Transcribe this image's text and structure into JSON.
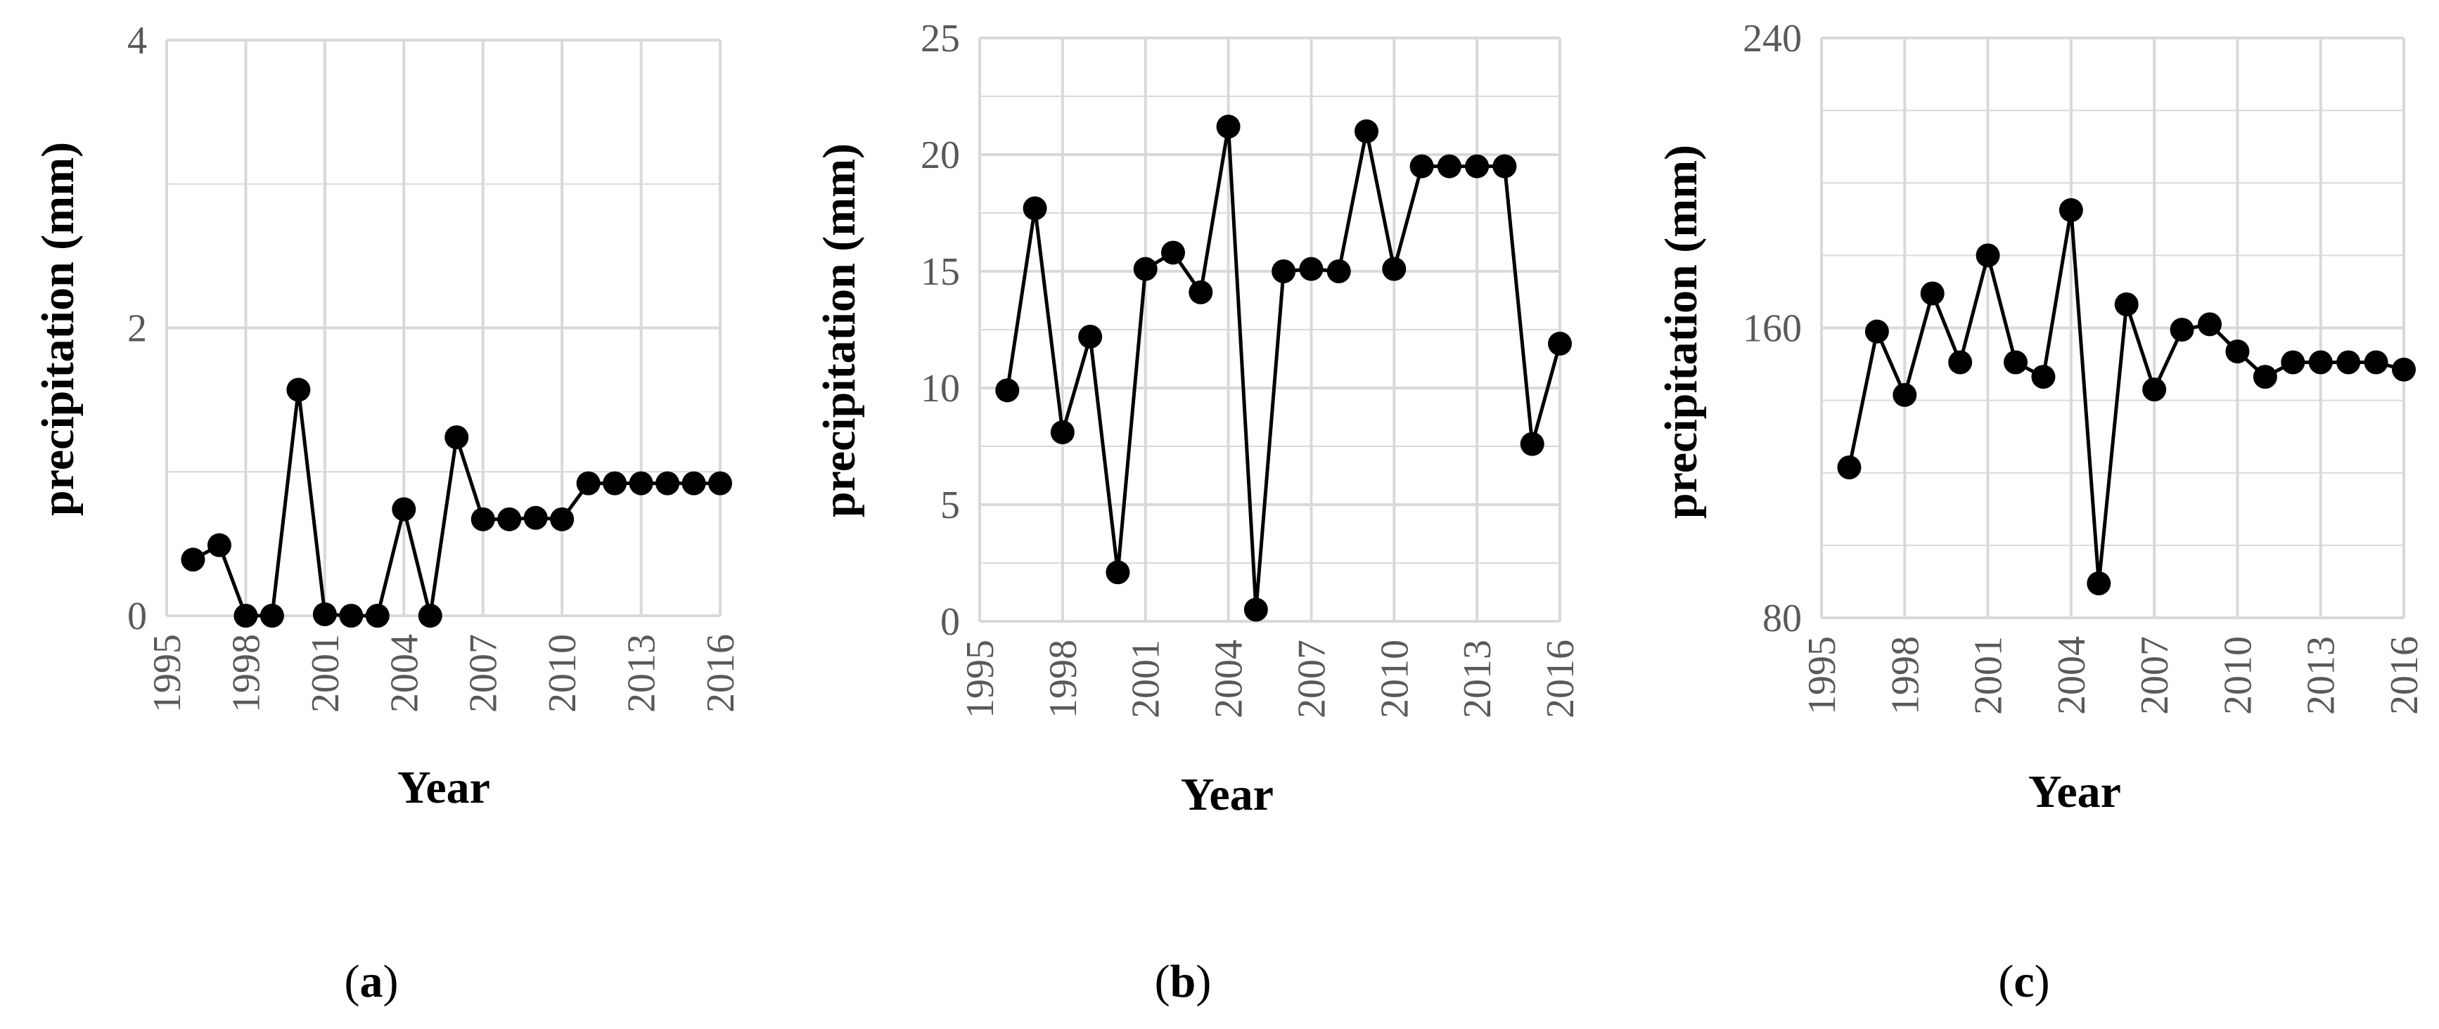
{
  "style": {
    "grid_color": "#d9d9d9",
    "line_color": "#000000",
    "marker_color": "#000000",
    "tick_color": "#595959"
  },
  "chart_data": [
    {
      "panel": "a",
      "type": "line",
      "xlabel": "Year",
      "ylabel": "precipitation (mm)",
      "xlim": [
        1995,
        2016
      ],
      "ylim": [
        0,
        4
      ],
      "x_ticks": [
        "1995",
        "1998",
        "2001",
        "2004",
        "2007",
        "2010",
        "2013",
        "2016"
      ],
      "y_ticks": [
        "0",
        "2",
        "4"
      ],
      "y_tick_values": [
        0,
        2,
        4
      ],
      "y_minor_gridlines": [
        1,
        3
      ],
      "grid": true,
      "marker": "circle",
      "series": [
        {
          "x": [
            1996,
            1997,
            1998,
            1999,
            2000,
            2001,
            2002,
            2003,
            2004,
            2005,
            2006,
            2007,
            2008,
            2009,
            2010,
            2011,
            2012,
            2013,
            2014,
            2015,
            2016
          ],
          "values": [
            0.39,
            0.49,
            0.0,
            0.0,
            1.57,
            0.01,
            0.0,
            0.0,
            0.74,
            0.0,
            1.24,
            0.67,
            0.67,
            0.68,
            0.67,
            0.92,
            0.92,
            0.92,
            0.92,
            0.92,
            0.92
          ]
        }
      ]
    },
    {
      "panel": "b",
      "type": "line",
      "xlabel": "Year",
      "ylabel": "precipitation (mm)",
      "xlim": [
        1995,
        2016
      ],
      "ylim": [
        0,
        25
      ],
      "x_ticks": [
        "1995",
        "1998",
        "2001",
        "2004",
        "2007",
        "2010",
        "2013",
        "2016"
      ],
      "y_ticks": [
        "0",
        "5",
        "10",
        "15",
        "20",
        "25"
      ],
      "y_tick_values": [
        0,
        5,
        10,
        15,
        20,
        25
      ],
      "y_minor_gridlines": [
        2.5,
        7.5,
        12.5,
        17.5,
        22.5
      ],
      "grid": true,
      "marker": "circle",
      "series": [
        {
          "x": [
            1996,
            1997,
            1998,
            1999,
            2000,
            2001,
            2002,
            2003,
            2004,
            2005,
            2006,
            2007,
            2008,
            2009,
            2010,
            2011,
            2012,
            2013,
            2014,
            2015,
            2016
          ],
          "values": [
            9.9,
            17.7,
            8.1,
            12.2,
            2.1,
            15.1,
            15.8,
            14.1,
            21.2,
            0.5,
            15.0,
            15.1,
            15.0,
            21.0,
            15.1,
            19.5,
            19.5,
            19.5,
            19.5,
            7.6,
            11.9
          ]
        }
      ]
    },
    {
      "panel": "c",
      "type": "line",
      "xlabel": "Year",
      "ylabel": "precipitation (mm)",
      "xlim": [
        1995,
        2016
      ],
      "ylim": [
        80,
        240
      ],
      "x_ticks": [
        "1995",
        "1998",
        "2001",
        "2004",
        "2007",
        "2010",
        "2013",
        "2016"
      ],
      "y_ticks": [
        "80",
        "160",
        "240"
      ],
      "y_tick_values": [
        80,
        160,
        240
      ],
      "y_minor_gridlines": [
        100,
        120,
        140,
        180,
        200,
        220
      ],
      "grid": true,
      "marker": "circle",
      "series": [
        {
          "x": [
            1996,
            1997,
            1998,
            1999,
            2000,
            2001,
            2002,
            2003,
            2004,
            2005,
            2006,
            2007,
            2008,
            2009,
            2010,
            2011,
            2012,
            2013,
            2014,
            2015,
            2016
          ],
          "values": [
            121.5,
            159,
            141.5,
            169.5,
            150.5,
            180,
            150.5,
            146.5,
            192.5,
            89.5,
            166.5,
            143,
            159.5,
            161,
            153.5,
            146.5,
            150.5,
            150.5,
            150.5,
            150.5,
            148.5
          ]
        }
      ]
    }
  ],
  "panel_labels": [
    {
      "open": "(",
      "letter": "a",
      "close": ")"
    },
    {
      "open": "(",
      "letter": "b",
      "close": ")"
    },
    {
      "open": "(",
      "letter": "c",
      "close": ")"
    }
  ]
}
